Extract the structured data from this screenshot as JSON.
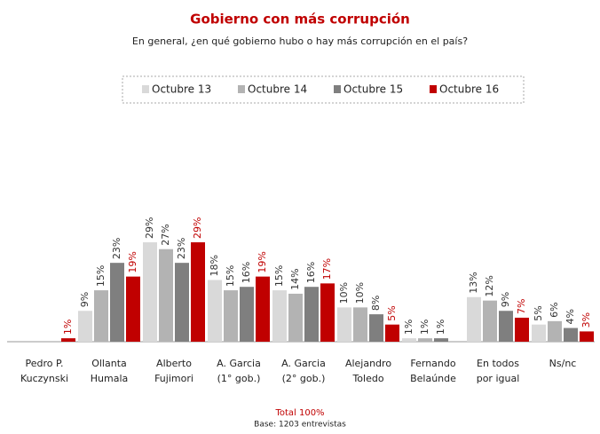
{
  "chart_data": {
    "type": "bar",
    "title": "Gobierno con más corrupción",
    "subtitle": "En general, ¿en qué gobierno hubo o hay más corrupción en el país?",
    "categories": [
      [
        "Pedro P.",
        "Kuczynski"
      ],
      [
        "Ollanta",
        "Humala"
      ],
      [
        "Alberto",
        "Fujimori"
      ],
      [
        "A. Garcia",
        "(1° gob.)"
      ],
      [
        "A. Garcia",
        "(2° gob.)"
      ],
      [
        "Alejandro",
        "Toledo"
      ],
      [
        "Fernando",
        "Belaúnde"
      ],
      [
        "En todos",
        "por igual"
      ],
      [
        "Ns/nc"
      ]
    ],
    "series": [
      {
        "name": "Octubre 13",
        "color": "#d9d9d9",
        "values": [
          null,
          9,
          29,
          18,
          15,
          10,
          1,
          13,
          5
        ],
        "value_labels": [
          null,
          "9%",
          "29%",
          "18%",
          "15%",
          "10%",
          "1%",
          "13%",
          "5%"
        ]
      },
      {
        "name": "Octubre 14",
        "color": "#b3b3b3",
        "values": [
          null,
          15,
          27,
          15,
          14,
          10,
          1,
          12,
          6
        ],
        "value_labels": [
          null,
          "15%",
          "27%",
          "15%",
          "14%",
          "10%",
          "1%",
          "12%",
          "6%"
        ]
      },
      {
        "name": "Octubre 15",
        "color": "#7f7f7f",
        "values": [
          null,
          23,
          23,
          16,
          16,
          8,
          1,
          9,
          4
        ],
        "value_labels": [
          null,
          "23%",
          "23%",
          "16%",
          "16%",
          "8%",
          "1%",
          "9%",
          "4%"
        ]
      },
      {
        "name": "Octubre 16",
        "color": "#c00000",
        "values": [
          1,
          19,
          29,
          19,
          17,
          5,
          null,
          7,
          3
        ],
        "value_labels": [
          "1%",
          "19%",
          "29%",
          "19%",
          "17%",
          "5%",
          null,
          "7%",
          "3%"
        ]
      }
    ],
    "footer": {
      "total": "Total 100%",
      "base": "Base:  1203 entrevistas"
    }
  }
}
